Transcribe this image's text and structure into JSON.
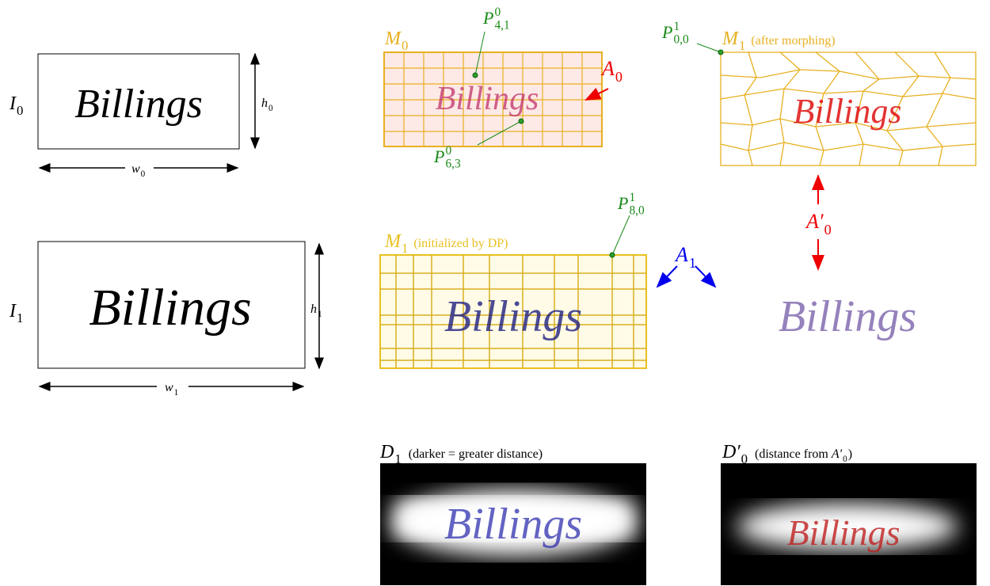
{
  "panels": {
    "i0": {
      "label": {
        "base": "I",
        "sub": "0"
      },
      "height_label": {
        "base": "h",
        "sub": "0"
      },
      "width_label": {
        "base": "w",
        "sub": "0"
      },
      "word": "Billings"
    },
    "i1": {
      "label": {
        "base": "I",
        "sub": "1"
      },
      "height_label": {
        "base": "h",
        "sub": "1"
      },
      "width_label": {
        "base": "w",
        "sub": "1"
      },
      "word": "Billings"
    },
    "m0": {
      "label": {
        "base": "M",
        "sub": "0"
      },
      "word": "Billings",
      "point_a": {
        "base": "P",
        "sup": "0",
        "sub": "4,1"
      },
      "point_b": {
        "base": "P",
        "sup": "0",
        "sub": "6,3"
      },
      "arrow_label": {
        "base": "A",
        "sub": "0"
      }
    },
    "m1_morphed": {
      "label": {
        "base": "M",
        "sub": "1"
      },
      "note": "(after morphing)",
      "word": "Billings",
      "point": {
        "base": "P",
        "sup": "1",
        "sub": "0,0"
      },
      "arrow_label": {
        "base": "A′",
        "sub": "0"
      }
    },
    "m1_init": {
      "label": {
        "base": "M",
        "sub": "1"
      },
      "note": "(initialized by DP)",
      "word": "Billings",
      "point": {
        "base": "P",
        "sup": "1",
        "sub": "8,0"
      },
      "arrow_label": {
        "base": "A",
        "sub": "1"
      },
      "result_word": "Billings"
    },
    "d1": {
      "label": {
        "base": "D",
        "sub": "1"
      },
      "note": "(darker = greater distance)",
      "word": "Billings"
    },
    "d0p": {
      "label": {
        "base": "D′",
        "sub": "0"
      },
      "note_pre": "(distance from",
      "note_math": {
        "base": "A′",
        "sub": "0"
      },
      "note_post": ")",
      "word": "Billings"
    }
  }
}
